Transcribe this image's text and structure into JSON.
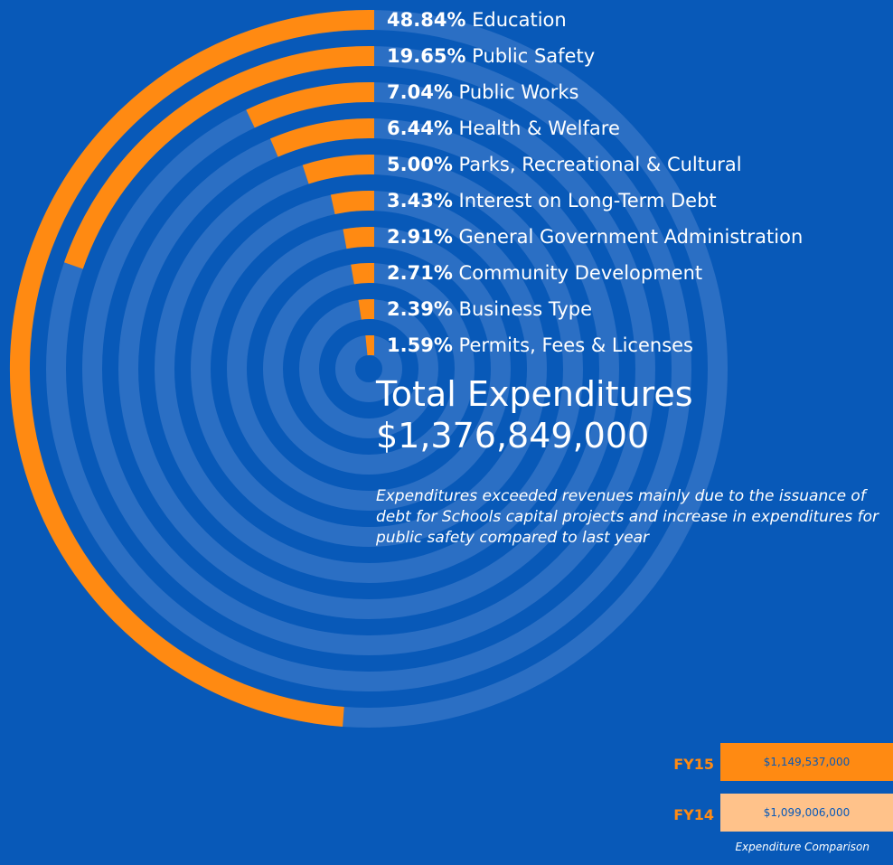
{
  "chart_data": [
    {
      "type": "radial-bar",
      "categories": [
        "Education",
        "Public Safety",
        "Public Works",
        "Health & Welfare",
        "Parks, Recreational & Cultural",
        "Interest on Long-Term Debt",
        "General Government Administration",
        "Community Development",
        "Business Type",
        "Permits, Fees & Licenses"
      ],
      "values": [
        48.84,
        19.65,
        7.04,
        6.44,
        5.0,
        3.43,
        2.91,
        2.71,
        2.39,
        1.59
      ],
      "value_labels": [
        "48.84%",
        "19.65%",
        "7.04%",
        "6.44%",
        "5.00%",
        "3.43%",
        "2.91%",
        "2.71%",
        "2.39%",
        "1.59%"
      ],
      "unit": "%"
    },
    {
      "type": "bar",
      "categories": [
        "FY15",
        "FY14"
      ],
      "values": [
        1149537000,
        1099006000
      ],
      "value_labels": [
        "$1,149,537,000",
        "$1,099,006,000"
      ],
      "title": "Expenditure Comparison"
    }
  ],
  "total": {
    "title": "Total Expenditures",
    "amount": "$1,376,849,000"
  },
  "note": "Expenditures exceeded revenues mainly due to the issuance of debt for Schools capital projects and increase in expenditures for public safety compared to last year",
  "colors": {
    "background": "#0859b8",
    "ring_track": "#2b6fc4",
    "orange": "#ff8a12",
    "peach": "#ffc28a",
    "text": "#ffffff"
  }
}
